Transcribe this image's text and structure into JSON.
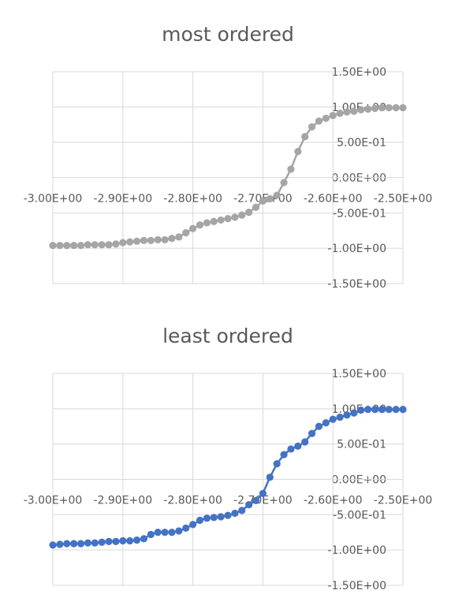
{
  "chart_data": [
    {
      "type": "line",
      "title": "most ordered",
      "xlabel": "",
      "ylabel": "",
      "xlim": [
        -3.0,
        -2.5
      ],
      "ylim": [
        -1.5,
        1.5
      ],
      "x_ticks": [
        "-3.00E+00",
        "-2.90E+00",
        "-2.80E+00",
        "-2.70E+00",
        "-2.60E+00",
        "-2.50E+00"
      ],
      "y_ticks": [
        "1.50E+00",
        "1.00E+00",
        "5.00E-01",
        "0.00E+00",
        "-5.00E-01",
        "-1.00E+00",
        "-1.50E+00"
      ],
      "grid": true,
      "legend": "none",
      "color": "#a5a5a5",
      "series": [
        {
          "x": [
            -3.0,
            -2.99,
            -2.98,
            -2.97,
            -2.96,
            -2.95,
            -2.94,
            -2.93,
            -2.92,
            -2.91,
            -2.9,
            -2.89,
            -2.88,
            -2.87,
            -2.86,
            -2.85,
            -2.84,
            -2.83,
            -2.82,
            -2.81,
            -2.8,
            -2.79,
            -2.78,
            -2.77,
            -2.76,
            -2.75,
            -2.74,
            -2.73,
            -2.72,
            -2.71,
            -2.7,
            -2.69,
            -2.68,
            -2.67,
            -2.66,
            -2.65,
            -2.64,
            -2.63,
            -2.62,
            -2.61,
            -2.6,
            -2.59,
            -2.58,
            -2.57,
            -2.56,
            -2.55,
            -2.54,
            -2.53,
            -2.52,
            -2.51,
            -2.5
          ],
          "y": [
            -0.96,
            -0.96,
            -0.96,
            -0.96,
            -0.96,
            -0.95,
            -0.95,
            -0.95,
            -0.95,
            -0.94,
            -0.92,
            -0.91,
            -0.9,
            -0.89,
            -0.89,
            -0.88,
            -0.88,
            -0.86,
            -0.84,
            -0.78,
            -0.72,
            -0.67,
            -0.64,
            -0.62,
            -0.6,
            -0.58,
            -0.56,
            -0.53,
            -0.49,
            -0.42,
            -0.33,
            -0.3,
            -0.25,
            -0.07,
            0.12,
            0.37,
            0.58,
            0.72,
            0.8,
            0.84,
            0.88,
            0.91,
            0.93,
            0.94,
            0.96,
            0.97,
            0.98,
            0.99,
            0.99,
            0.99,
            0.99
          ]
        }
      ]
    },
    {
      "type": "line",
      "title": "least ordered",
      "xlabel": "",
      "ylabel": "",
      "xlim": [
        -3.0,
        -2.5
      ],
      "ylim": [
        -1.5,
        1.5
      ],
      "x_ticks": [
        "-3.00E+00",
        "-2.90E+00",
        "-2.80E+00",
        "-2.70E+00",
        "-2.60E+00",
        "-2.50E+00"
      ],
      "y_ticks": [
        "1.50E+00",
        "1.00E+00",
        "5.00E-01",
        "0.00E+00",
        "-5.00E-01",
        "-1.00E+00",
        "-1.50E+00"
      ],
      "grid": true,
      "legend": "none",
      "color": "#4472c4",
      "series": [
        {
          "x": [
            -3.0,
            -2.99,
            -2.98,
            -2.97,
            -2.96,
            -2.95,
            -2.94,
            -2.93,
            -2.92,
            -2.91,
            -2.9,
            -2.89,
            -2.88,
            -2.87,
            -2.86,
            -2.85,
            -2.84,
            -2.83,
            -2.82,
            -2.81,
            -2.8,
            -2.79,
            -2.78,
            -2.77,
            -2.76,
            -2.75,
            -2.74,
            -2.73,
            -2.72,
            -2.71,
            -2.7,
            -2.69,
            -2.68,
            -2.67,
            -2.66,
            -2.65,
            -2.64,
            -2.63,
            -2.62,
            -2.61,
            -2.6,
            -2.59,
            -2.58,
            -2.57,
            -2.56,
            -2.55,
            -2.54,
            -2.53,
            -2.52,
            -2.51,
            -2.5
          ],
          "y": [
            -0.93,
            -0.92,
            -0.91,
            -0.91,
            -0.91,
            -0.9,
            -0.9,
            -0.89,
            -0.88,
            -0.88,
            -0.87,
            -0.87,
            -0.86,
            -0.84,
            -0.78,
            -0.75,
            -0.75,
            -0.75,
            -0.73,
            -0.69,
            -0.64,
            -0.58,
            -0.55,
            -0.54,
            -0.53,
            -0.51,
            -0.48,
            -0.44,
            -0.36,
            -0.3,
            -0.2,
            0.03,
            0.22,
            0.35,
            0.43,
            0.47,
            0.53,
            0.65,
            0.75,
            0.8,
            0.85,
            0.88,
            0.91,
            0.94,
            0.98,
            0.99,
            0.99,
            0.99,
            0.99,
            0.99,
            0.99
          ]
        }
      ]
    }
  ]
}
